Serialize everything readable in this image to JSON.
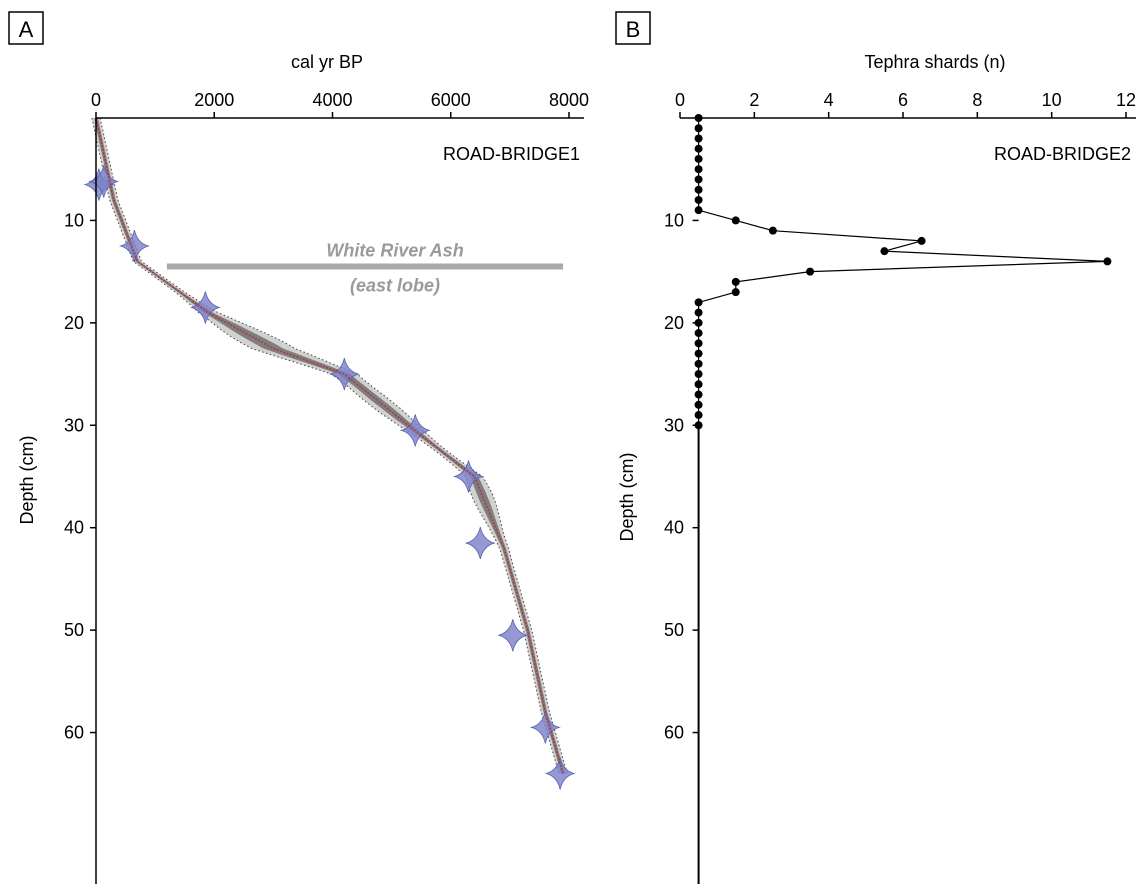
{
  "panels": {
    "a": {
      "letter": "A"
    },
    "b": {
      "letter": "B"
    }
  },
  "chart_data": [
    {
      "type": "line",
      "panel": "A",
      "site_label": "ROAD-BRIDGE1",
      "xlabel": "cal yr BP",
      "ylabel": "Depth (cm)",
      "xlim": [
        0,
        8000
      ],
      "ylim": [
        66,
        0
      ],
      "x_ticks": [
        0,
        2000,
        4000,
        6000,
        8000
      ],
      "y_ticks": [
        10,
        20,
        30,
        40,
        50,
        60
      ],
      "age_depth_model": {
        "age": [
          0,
          300,
          700,
          1900,
          3000,
          4200,
          5500,
          6400,
          6900,
          7300,
          7600,
          7900
        ],
        "depth": [
          0,
          8,
          14,
          19,
          22.5,
          25,
          31,
          35,
          42,
          50,
          58,
          64
        ]
      },
      "dated_levels": {
        "age": [
          50,
          130,
          650,
          1850,
          4200,
          5400,
          6300,
          6500,
          7050,
          7600,
          7850
        ],
        "depth": [
          6.5,
          6.2,
          12.5,
          18.5,
          25,
          30.5,
          35,
          41.5,
          50.5,
          59.5,
          64
        ]
      },
      "annotation": {
        "line1": "White River Ash",
        "line2": "(east lobe)",
        "depth": 14.5,
        "age_start": 1200,
        "age_end": 7900
      },
      "colors": {
        "model": "#b03a3a",
        "envelope": "#7a7a7a",
        "dates": "#7a80c8",
        "ash": "#a9a9a9"
      }
    },
    {
      "type": "line",
      "panel": "B",
      "site_label": "ROAD-BRIDGE2",
      "xlabel": "Tephra shards (n)",
      "ylabel": "Depth (cm)",
      "xlim": [
        0,
        12
      ],
      "ylim": [
        66,
        0
      ],
      "x_ticks": [
        0,
        2,
        4,
        6,
        8,
        10,
        12
      ],
      "y_ticks": [
        10,
        20,
        30,
        40,
        50,
        60
      ],
      "depth": [
        0,
        1,
        2,
        3,
        4,
        5,
        6,
        7,
        8,
        9,
        10,
        11,
        12,
        13,
        14,
        15,
        16,
        17,
        18,
        19,
        20,
        21,
        22,
        23,
        24,
        25,
        26,
        27,
        28,
        29,
        30
      ],
      "shards": [
        0,
        0,
        0,
        0,
        0,
        0,
        0,
        0,
        0,
        0,
        1,
        2,
        6,
        5,
        11,
        3,
        1,
        1,
        0,
        0,
        0,
        0,
        0,
        0,
        0,
        0,
        0,
        0,
        0,
        0,
        0
      ]
    }
  ]
}
